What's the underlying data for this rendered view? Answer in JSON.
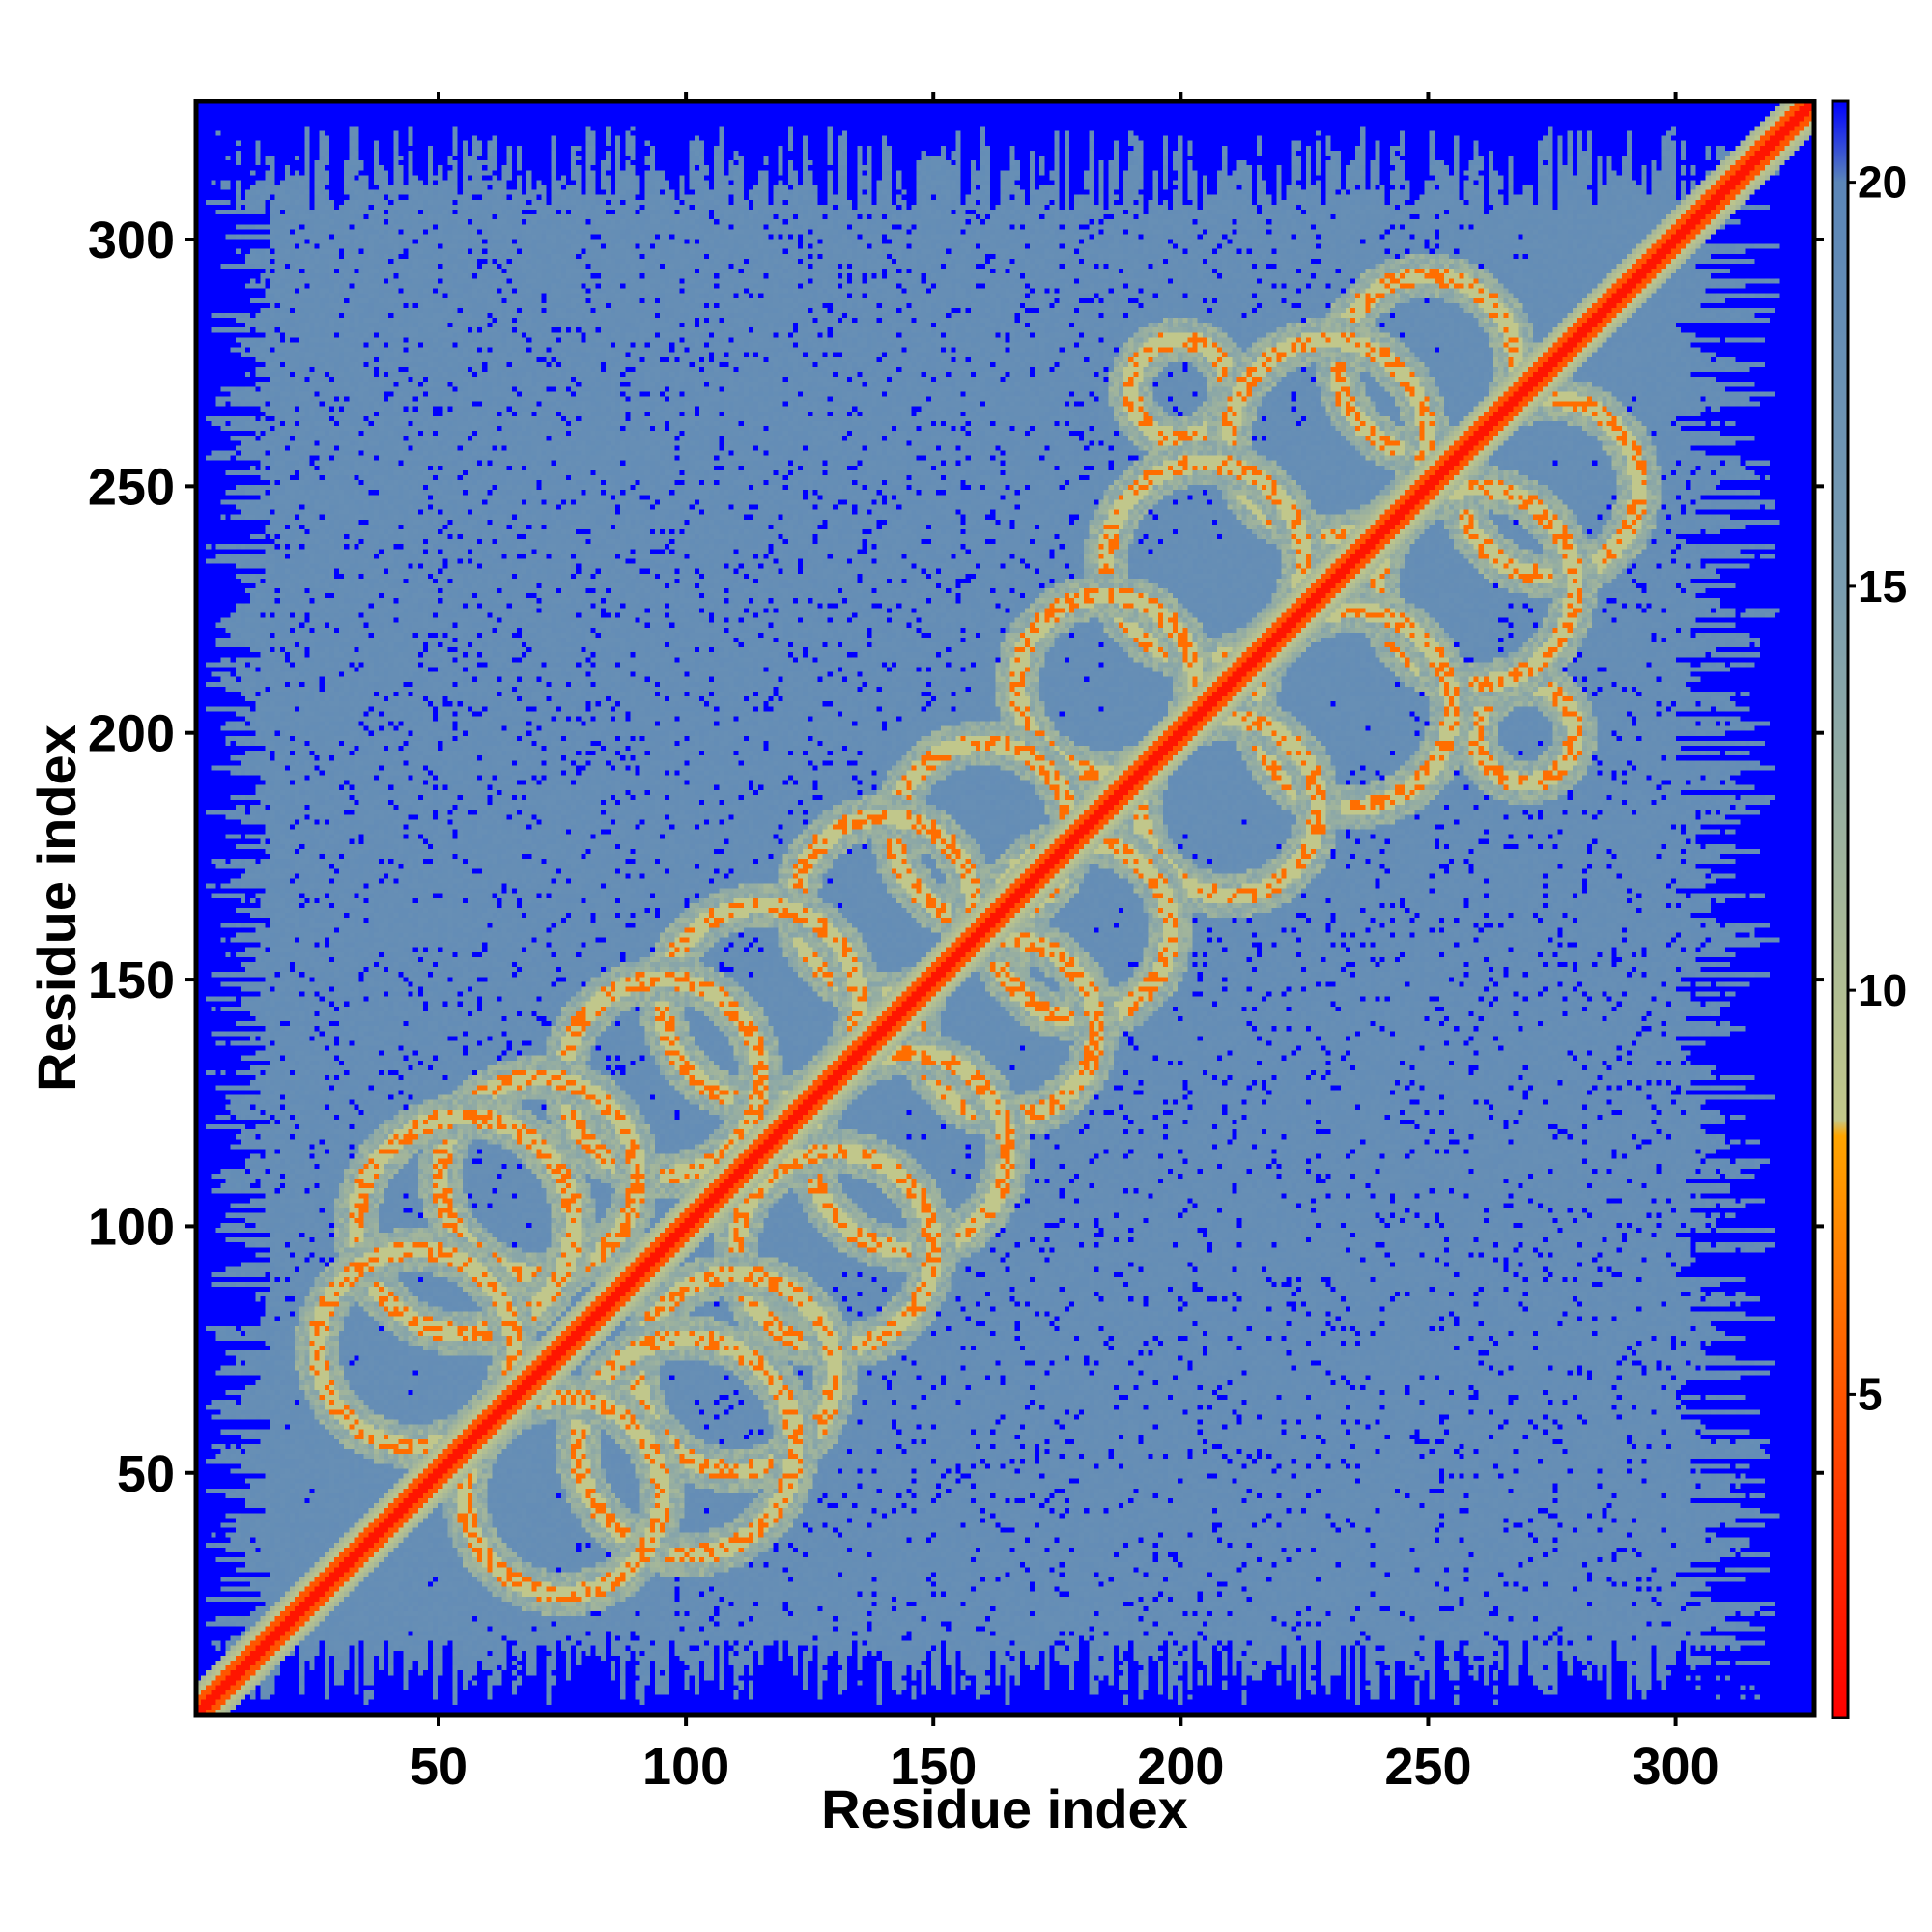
{
  "chart_data": {
    "type": "heatmap",
    "title": "",
    "xlabel": "Residue index",
    "ylabel": "Residue index",
    "xlim": [
      1,
      328
    ],
    "ylim": [
      1,
      328
    ],
    "n_residues": 328,
    "x_ticks": [
      50,
      100,
      150,
      200,
      250,
      300
    ],
    "y_ticks": [
      50,
      100,
      150,
      200,
      250,
      300
    ],
    "colorbar": {
      "ticks": [
        5,
        10,
        15,
        20
      ],
      "range": [
        1,
        21
      ],
      "colormap": [
        {
          "value": 1,
          "color": "#ff0000"
        },
        {
          "value": 5,
          "color": "#ff5500"
        },
        {
          "value": 8.2,
          "color": "#ffa500"
        },
        {
          "value": 8.4,
          "color": "#c2c88a"
        },
        {
          "value": 15,
          "color": "#7a9db0"
        },
        {
          "value": 20,
          "color": "#5b86b8"
        },
        {
          "value": 21,
          "color": "#0000ff"
        }
      ]
    },
    "distance_levels": {
      "diagonal": 2,
      "near_diagonal": 5,
      "band": 9,
      "contact_ring": 7,
      "ring_halo": 11,
      "protein_interior": 18,
      "void": 21
    },
    "contact_rings": [
      {
        "i": 45,
        "j": 75,
        "r": 20
      },
      {
        "i": 75,
        "j": 45,
        "r": 20
      },
      {
        "i": 55,
        "j": 100,
        "r": 22
      },
      {
        "i": 100,
        "j": 55,
        "r": 22
      },
      {
        "i": 70,
        "j": 110,
        "r": 20
      },
      {
        "i": 110,
        "j": 70,
        "r": 20
      },
      {
        "i": 95,
        "j": 130,
        "r": 20
      },
      {
        "i": 130,
        "j": 95,
        "r": 20
      },
      {
        "i": 115,
        "j": 145,
        "r": 20
      },
      {
        "i": 145,
        "j": 115,
        "r": 20
      },
      {
        "i": 140,
        "j": 165,
        "r": 18
      },
      {
        "i": 165,
        "j": 140,
        "r": 18
      },
      {
        "i": 160,
        "j": 180,
        "r": 18
      },
      {
        "i": 180,
        "j": 160,
        "r": 18
      },
      {
        "i": 185,
        "j": 210,
        "r": 18
      },
      {
        "i": 210,
        "j": 185,
        "r": 18
      },
      {
        "i": 205,
        "j": 235,
        "r": 20
      },
      {
        "i": 235,
        "j": 205,
        "r": 20
      },
      {
        "i": 230,
        "j": 260,
        "r": 20
      },
      {
        "i": 260,
        "j": 230,
        "r": 20
      },
      {
        "i": 250,
        "j": 275,
        "r": 18
      },
      {
        "i": 275,
        "j": 250,
        "r": 18
      },
      {
        "i": 200,
        "j": 270,
        "r": 10
      },
      {
        "i": 270,
        "j": 200,
        "r": 10
      }
    ],
    "protein_mask": {
      "x_start": 8,
      "x_end": 292,
      "y_start": 8,
      "y_end": 306
    }
  }
}
